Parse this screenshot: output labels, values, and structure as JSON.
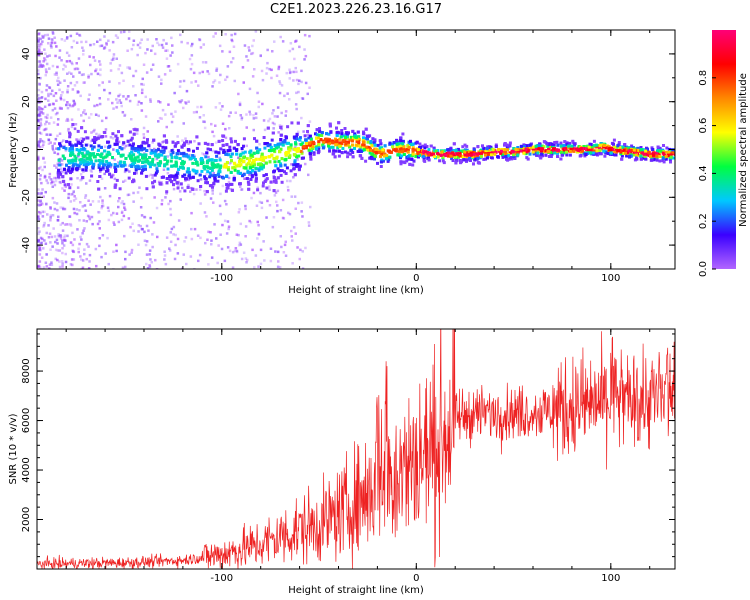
{
  "title": "C2E1.2023.226.23.16.G17",
  "colors": {
    "trace_line": "#ee2222",
    "low_scatter": "#9b30ff",
    "colormap": [
      "#b266ff",
      "#3a00ff",
      "#00c8ff",
      "#00ff40",
      "#ffff00",
      "#ff8800",
      "#ff0000",
      "#ff0077"
    ]
  },
  "chart_data": [
    {
      "type": "heatmap",
      "xlabel": "Height of straight line (km)",
      "ylabel": "Frequency (Hz)",
      "xlim": [
        -195,
        133
      ],
      "ylim": [
        -50,
        50
      ],
      "xticks": [
        -100,
        0,
        100
      ],
      "yticks": [
        -40,
        -20,
        0,
        20,
        40
      ],
      "colorbar": {
        "label": "Normalized spectral amplitude",
        "range": [
          0,
          1
        ],
        "ticks": [
          0.0,
          0.2,
          0.4,
          0.6,
          0.8
        ]
      },
      "ridge": {
        "x": [
          -180,
          -160,
          -140,
          -120,
          -100,
          -80,
          -60,
          -50,
          -40,
          -30,
          -25,
          -20,
          -15,
          -10,
          -5,
          0,
          10,
          20,
          30,
          40,
          50,
          60,
          70,
          80,
          90,
          95,
          100,
          110,
          120,
          133
        ],
        "y": [
          -3,
          -3,
          -4,
          -6,
          -7,
          -4,
          0,
          4,
          3,
          3,
          1,
          -2,
          -1,
          0,
          0,
          -1,
          -2,
          -2,
          -2,
          -1,
          -1,
          0,
          0,
          0,
          0,
          1,
          0,
          -1,
          -2,
          -2
        ]
      }
    },
    {
      "type": "line",
      "xlabel": "Height of straight line (km)",
      "ylabel": "SNR (10 * v/v)",
      "xlim": [
        -195,
        133
      ],
      "ylim": [
        0,
        9700
      ],
      "xticks": [
        -100,
        0,
        100
      ],
      "yticks": [
        2000,
        4000,
        6000,
        8000
      ],
      "trend": {
        "x": [
          -195,
          -150,
          -120,
          -100,
          -80,
          -60,
          -50,
          -40,
          -30,
          -20,
          -15,
          -10,
          0,
          10,
          15,
          20,
          30,
          50,
          70,
          90,
          100,
          110,
          120,
          133
        ],
        "y": [
          200,
          250,
          350,
          600,
          1000,
          1600,
          1800,
          2200,
          2800,
          3500,
          3800,
          4000,
          4300,
          5000,
          5600,
          6100,
          6300,
          6300,
          6400,
          6700,
          6800,
          6800,
          6900,
          6900
        ]
      }
    }
  ]
}
